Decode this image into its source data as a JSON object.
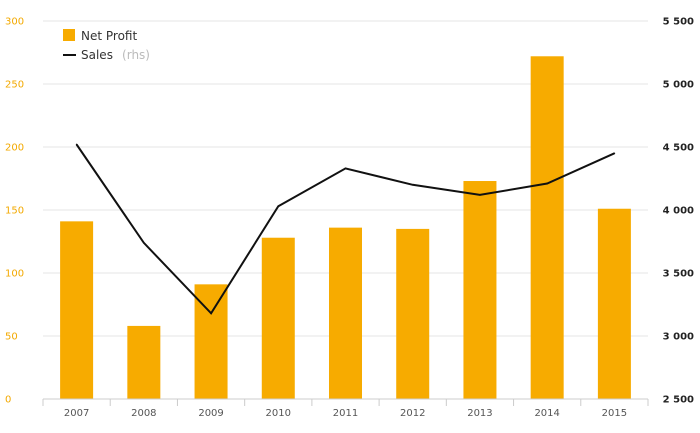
{
  "chart_data": {
    "type": "bar",
    "categories": [
      "2007",
      "2008",
      "2009",
      "2010",
      "2011",
      "2012",
      "2013",
      "2014",
      "2015"
    ],
    "series": [
      {
        "name": "Net Profit",
        "type": "bar",
        "axis": "left",
        "color": "#f7ab00",
        "values": [
          141,
          58,
          91,
          128,
          136,
          135,
          173,
          272,
          151
        ]
      },
      {
        "name": "Sales",
        "type": "line",
        "axis": "right",
        "color": "#111111",
        "values": [
          4520,
          3740,
          3180,
          4030,
          4330,
          4200,
          4120,
          4210,
          4450
        ]
      }
    ],
    "y_left": {
      "ylim": [
        0,
        300
      ],
      "ticks": [
        "0",
        "50",
        "100",
        "150",
        "200",
        "250",
        "300"
      ],
      "tick_values": [
        0,
        50,
        100,
        150,
        200,
        250,
        300
      ],
      "color": "#f3a900"
    },
    "y_right": {
      "ylim": [
        2500,
        5500
      ],
      "ticks": [
        "2 500",
        "3 000",
        "3 500",
        "4 000",
        "4 500",
        "5 000",
        "5 500"
      ],
      "tick_values": [
        2500,
        3000,
        3500,
        4000,
        4500,
        5000,
        5500
      ],
      "color": "#222222"
    },
    "legend": {
      "placement": "top-left",
      "items": [
        {
          "label": "Net Profit",
          "suffix": ""
        },
        {
          "label": "Sales",
          "suffix": "(rhs)"
        }
      ]
    },
    "grid": true,
    "gridline_color": "#e6e6e6"
  }
}
